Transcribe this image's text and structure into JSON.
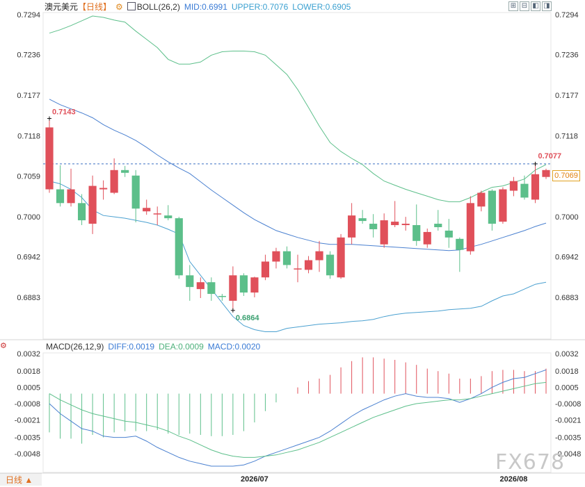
{
  "header": {
    "symbol": "澳元美元",
    "period": "【日线】",
    "indicator": "BOLL(26,2)",
    "mid": "MID:0.6991",
    "upper": "UPPER:0.7076",
    "lower": "LOWER:0.6905"
  },
  "macd_header": {
    "name": "MACD(26,12,9)",
    "diff": "DIFF:0.0019",
    "dea": "DEA:0.0009",
    "macd": "MACD:0.0020"
  },
  "colors": {
    "up": "#e0505a",
    "down": "#5cbf8a",
    "upper": "#5cbf8a",
    "mid": "#4a80d0",
    "lower": "#4aa0d0",
    "diff": "#4a80d0",
    "dea": "#5cbf8a",
    "header_mid": "#3a7bd5",
    "header_upper": "#3aa0d0",
    "header_lower": "#3aa0d0"
  },
  "period_button": "日线 ▲",
  "watermark": "FX678",
  "current_price": "0.7069",
  "annotations": {
    "high": "0.7143",
    "low": "0.6864",
    "recent_high": "0.7077"
  },
  "chart_data": [
    {
      "type": "candlestick",
      "title": "澳元美元",
      "y_ticks": [
        "0.7294",
        "0.7236",
        "0.7177",
        "0.7118",
        "0.7059",
        "0.7000",
        "0.6942",
        "0.6883"
      ],
      "ylim": [
        0.6827,
        0.731
      ],
      "x_tick_labels": [
        {
          "label": "2026/07",
          "index": 19
        },
        {
          "label": "2026/08",
          "index": 43
        }
      ],
      "dashed_level": 0.7077,
      "candles": [
        {
          "o": 0.704,
          "h": 0.7143,
          "l": 0.7035,
          "c": 0.713
        },
        {
          "o": 0.704,
          "h": 0.7075,
          "l": 0.7015,
          "c": 0.702
        },
        {
          "o": 0.702,
          "h": 0.707,
          "l": 0.7015,
          "c": 0.704
        },
        {
          "o": 0.702,
          "h": 0.7033,
          "l": 0.6988,
          "c": 0.6995
        },
        {
          "o": 0.699,
          "h": 0.706,
          "l": 0.6975,
          "c": 0.7045
        },
        {
          "o": 0.704,
          "h": 0.7053,
          "l": 0.7025,
          "c": 0.7042
        },
        {
          "o": 0.7035,
          "h": 0.7085,
          "l": 0.7033,
          "c": 0.7068
        },
        {
          "o": 0.7068,
          "h": 0.7074,
          "l": 0.7058,
          "c": 0.7064
        },
        {
          "o": 0.706,
          "h": 0.7068,
          "l": 0.6992,
          "c": 0.7012
        },
        {
          "o": 0.7008,
          "h": 0.7025,
          "l": 0.7003,
          "c": 0.7013
        },
        {
          "o": 0.7005,
          "h": 0.7015,
          "l": 0.6988,
          "c": 0.7005
        },
        {
          "o": 0.7002,
          "h": 0.7017,
          "l": 0.6995,
          "c": 0.6998
        },
        {
          "o": 0.6998,
          "h": 0.7,
          "l": 0.691,
          "c": 0.6915
        },
        {
          "o": 0.6915,
          "h": 0.693,
          "l": 0.6878,
          "c": 0.6898
        },
        {
          "o": 0.6895,
          "h": 0.6912,
          "l": 0.6882,
          "c": 0.6905
        },
        {
          "o": 0.6905,
          "h": 0.6912,
          "l": 0.6878,
          "c": 0.6888
        },
        {
          "o": 0.6885,
          "h": 0.6888,
          "l": 0.6878,
          "c": 0.6884
        },
        {
          "o": 0.6878,
          "h": 0.6928,
          "l": 0.6864,
          "c": 0.6915
        },
        {
          "o": 0.6915,
          "h": 0.6918,
          "l": 0.6885,
          "c": 0.689
        },
        {
          "o": 0.689,
          "h": 0.6913,
          "l": 0.6883,
          "c": 0.6912
        },
        {
          "o": 0.6912,
          "h": 0.6945,
          "l": 0.6908,
          "c": 0.6935
        },
        {
          "o": 0.6935,
          "h": 0.6955,
          "l": 0.6925,
          "c": 0.695
        },
        {
          "o": 0.695,
          "h": 0.6957,
          "l": 0.6925,
          "c": 0.693
        },
        {
          "o": 0.6925,
          "h": 0.6945,
          "l": 0.6905,
          "c": 0.6925
        },
        {
          "o": 0.6923,
          "h": 0.6943,
          "l": 0.6918,
          "c": 0.6937
        },
        {
          "o": 0.6937,
          "h": 0.6965,
          "l": 0.692,
          "c": 0.695
        },
        {
          "o": 0.6945,
          "h": 0.695,
          "l": 0.691,
          "c": 0.6915
        },
        {
          "o": 0.6912,
          "h": 0.6975,
          "l": 0.691,
          "c": 0.697
        },
        {
          "o": 0.697,
          "h": 0.702,
          "l": 0.696,
          "c": 0.7002
        },
        {
          "o": 0.6998,
          "h": 0.701,
          "l": 0.699,
          "c": 0.6994
        },
        {
          "o": 0.699,
          "h": 0.7004,
          "l": 0.697,
          "c": 0.6982
        },
        {
          "o": 0.696,
          "h": 0.7005,
          "l": 0.6955,
          "c": 0.6995
        },
        {
          "o": 0.6988,
          "h": 0.7023,
          "l": 0.6985,
          "c": 0.6993
        },
        {
          "o": 0.6988,
          "h": 0.7,
          "l": 0.698,
          "c": 0.699
        },
        {
          "o": 0.6988,
          "h": 0.7018,
          "l": 0.6958,
          "c": 0.6965
        },
        {
          "o": 0.696,
          "h": 0.6983,
          "l": 0.6955,
          "c": 0.6978
        },
        {
          "o": 0.699,
          "h": 0.701,
          "l": 0.698,
          "c": 0.6985
        },
        {
          "o": 0.698,
          "h": 0.6997,
          "l": 0.6955,
          "c": 0.697
        },
        {
          "o": 0.6968,
          "h": 0.697,
          "l": 0.692,
          "c": 0.6952
        },
        {
          "o": 0.695,
          "h": 0.703,
          "l": 0.6945,
          "c": 0.702
        },
        {
          "o": 0.7015,
          "h": 0.7038,
          "l": 0.7008,
          "c": 0.7035
        },
        {
          "o": 0.7038,
          "h": 0.704,
          "l": 0.698,
          "c": 0.699
        },
        {
          "o": 0.6993,
          "h": 0.7043,
          "l": 0.699,
          "c": 0.704
        },
        {
          "o": 0.7038,
          "h": 0.7058,
          "l": 0.703,
          "c": 0.7052
        },
        {
          "o": 0.7048,
          "h": 0.706,
          "l": 0.7025,
          "c": 0.7028
        },
        {
          "o": 0.7025,
          "h": 0.7077,
          "l": 0.702,
          "c": 0.7062
        },
        {
          "o": 0.7058,
          "h": 0.707,
          "l": 0.7055,
          "c": 0.7068
        }
      ],
      "boll_upper": [
        0.7267,
        0.7272,
        0.7278,
        0.7285,
        0.7292,
        0.729,
        0.7286,
        0.7283,
        0.727,
        0.7258,
        0.7246,
        0.7229,
        0.7222,
        0.7222,
        0.7225,
        0.7235,
        0.724,
        0.7241,
        0.7241,
        0.724,
        0.7235,
        0.7221,
        0.7207,
        0.7185,
        0.7159,
        0.7132,
        0.7108,
        0.7095,
        0.7085,
        0.7076,
        0.7063,
        0.7052,
        0.7046,
        0.704,
        0.7035,
        0.703,
        0.7025,
        0.7022,
        0.7022,
        0.7028,
        0.7036,
        0.7043,
        0.7045,
        0.705,
        0.7055,
        0.7068,
        0.7076
      ],
      "boll_mid": [
        0.7171,
        0.7163,
        0.7157,
        0.7151,
        0.7144,
        0.7134,
        0.7126,
        0.7119,
        0.7111,
        0.7101,
        0.709,
        0.708,
        0.7071,
        0.7063,
        0.7051,
        0.7039,
        0.7028,
        0.7017,
        0.7006,
        0.6996,
        0.6988,
        0.698,
        0.6975,
        0.697,
        0.6966,
        0.6962,
        0.696,
        0.696,
        0.696,
        0.6959,
        0.6958,
        0.6957,
        0.6956,
        0.6955,
        0.6954,
        0.6953,
        0.6952,
        0.6951,
        0.6952,
        0.6956,
        0.696,
        0.6965,
        0.697,
        0.6975,
        0.698,
        0.6986,
        0.6991
      ],
      "boll_lower": [
        0.7052,
        0.7048,
        0.704,
        0.7028,
        0.701,
        0.7002,
        0.7,
        0.6998,
        0.6995,
        0.6992,
        0.6988,
        0.6982,
        0.6975,
        0.6935,
        0.6915,
        0.6895,
        0.6875,
        0.6855,
        0.6842,
        0.6836,
        0.6833,
        0.6833,
        0.6838,
        0.684,
        0.6842,
        0.6844,
        0.6845,
        0.6846,
        0.6848,
        0.6849,
        0.6851,
        0.6855,
        0.6858,
        0.686,
        0.6861,
        0.6862,
        0.6863,
        0.6865,
        0.6866,
        0.6867,
        0.687,
        0.6878,
        0.6885,
        0.6888,
        0.6895,
        0.6902,
        0.6905
      ],
      "macd": {
        "y_ticks": [
          "0.0032",
          "0.0018",
          "0.0005",
          "-0.0008",
          "-0.0021",
          "-0.0035",
          "-0.0048"
        ],
        "ylim": [
          -0.006,
          0.0038
        ],
        "diff": [
          -0.0008,
          -0.0016,
          -0.0022,
          -0.0028,
          -0.003,
          -0.0034,
          -0.0035,
          -0.0035,
          -0.0034,
          -0.0038,
          -0.0043,
          -0.0047,
          -0.0051,
          -0.0054,
          -0.0056,
          -0.0058,
          -0.0058,
          -0.0058,
          -0.0057,
          -0.0054,
          -0.005,
          -0.0047,
          -0.0044,
          -0.0041,
          -0.0038,
          -0.0035,
          -0.003,
          -0.0024,
          -0.0018,
          -0.0013,
          -0.0009,
          -0.0005,
          -0.0002,
          0.0,
          -0.0002,
          -0.0003,
          -0.0003,
          -0.0004,
          -0.0007,
          -0.0004,
          0.0,
          0.0005,
          0.0009,
          0.0012,
          0.0013,
          0.0016,
          0.0019
        ],
        "dea": [
          0.0,
          -0.0005,
          -0.0009,
          -0.0013,
          -0.0016,
          -0.0018,
          -0.002,
          -0.0022,
          -0.0023,
          -0.0025,
          -0.0027,
          -0.003,
          -0.0034,
          -0.0037,
          -0.0041,
          -0.0045,
          -0.0048,
          -0.005,
          -0.0051,
          -0.0051,
          -0.005,
          -0.0049,
          -0.0047,
          -0.0045,
          -0.0042,
          -0.0039,
          -0.0035,
          -0.0031,
          -0.0027,
          -0.0023,
          -0.0019,
          -0.0016,
          -0.0013,
          -0.001,
          -0.0008,
          -0.0007,
          -0.0006,
          -0.0005,
          -0.0005,
          -0.0004,
          -0.0002,
          0.0,
          0.0002,
          0.0004,
          0.0006,
          0.0008,
          0.0009
        ],
        "hist": [
          -0.0031,
          -0.0036,
          -0.0036,
          -0.004,
          -0.0033,
          -0.0035,
          -0.0031,
          -0.003,
          -0.003,
          -0.003,
          -0.0029,
          -0.0032,
          -0.0033,
          -0.0032,
          -0.0033,
          -0.0034,
          -0.0034,
          -0.0033,
          -0.003,
          -0.0023,
          -0.0014,
          -0.0007,
          0.0,
          0.0005,
          0.001,
          0.0012,
          0.0015,
          0.0021,
          0.0026,
          0.0029,
          0.0029,
          0.0028,
          0.0027,
          0.0025,
          0.0023,
          0.002,
          0.0018,
          0.0016,
          0.0012,
          0.0012,
          0.0014,
          0.0018,
          0.0019,
          0.0019,
          0.0018,
          0.0018,
          0.002
        ]
      }
    }
  ]
}
